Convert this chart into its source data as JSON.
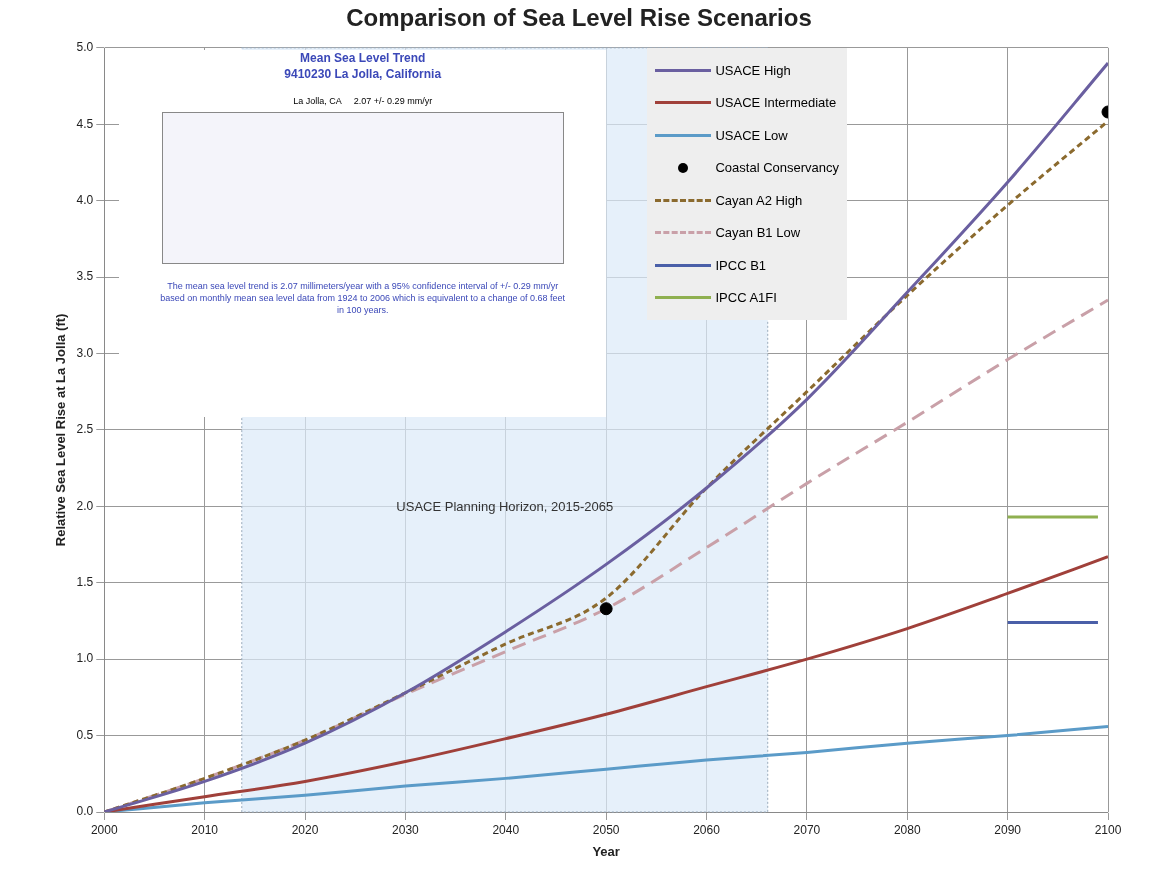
{
  "chart_data": {
    "type": "line",
    "title": "Comparison of Sea Level Rise Scenarios",
    "xlabel": "Year",
    "ylabel": "Relative Sea Level Rise at La Jolla (ft)",
    "x": [
      2000,
      2010,
      2020,
      2030,
      2040,
      2050,
      2060,
      2070,
      2080,
      2090,
      2100
    ],
    "series": [
      {
        "name": "USACE High",
        "color": "#6a5fa0",
        "line_style": "solid",
        "values": [
          0,
          0.2,
          0.45,
          0.78,
          1.18,
          1.62,
          2.12,
          2.7,
          3.4,
          4.12,
          4.9
        ]
      },
      {
        "name": "USACE Intermediate",
        "color": "#a0403a",
        "line_style": "solid",
        "values": [
          0,
          0.1,
          0.2,
          0.33,
          0.48,
          0.64,
          0.82,
          1.0,
          1.2,
          1.43,
          1.67
        ]
      },
      {
        "name": "USACE Low",
        "color": "#5b9bc8",
        "line_style": "solid",
        "values": [
          0,
          0.06,
          0.11,
          0.17,
          0.22,
          0.28,
          0.34,
          0.39,
          0.45,
          0.5,
          0.56
        ]
      },
      {
        "name": "Coastal Conservancy",
        "type": "scatter",
        "marker": "circle",
        "color": "#000000",
        "x": [
          2050,
          2100
        ],
        "values": [
          1.33,
          4.58
        ]
      },
      {
        "name": "Cayan A2 High",
        "color": "#8b6a2e",
        "line_style": "dotted",
        "values": [
          0,
          0.22,
          0.47,
          0.78,
          1.1,
          1.4,
          2.12,
          2.75,
          3.38,
          3.97,
          4.52
        ]
      },
      {
        "name": "Cayan B1 Low",
        "color": "#c9a0a8",
        "line_style": "dashed",
        "values": [
          0,
          0.22,
          0.47,
          0.77,
          1.05,
          1.33,
          1.73,
          2.15,
          2.55,
          2.96,
          3.35
        ]
      },
      {
        "name": "IPCC B1",
        "color": "#4a5fa8",
        "line_style": "solid",
        "x": [
          2090,
          2099
        ],
        "values": [
          1.24,
          1.24
        ]
      },
      {
        "name": "IPCC A1FI",
        "color": "#8fb050",
        "line_style": "solid",
        "x": [
          2090,
          2099
        ],
        "values": [
          1.93,
          1.93
        ]
      }
    ],
    "marker": "none",
    "bands": [
      {
        "axis": "x",
        "from": 2013.7,
        "to": 2066.1,
        "label": "USACE Planning Horizon, 2015-2065",
        "color": "#dbe9f8"
      }
    ],
    "xlim": [
      2000,
      2100
    ],
    "xticks": [
      2000,
      2010,
      2020,
      2030,
      2040,
      2050,
      2060,
      2070,
      2080,
      2090,
      2100
    ],
    "ylim": [
      0,
      5
    ],
    "yticks": [
      {
        "value": 0,
        "label": "0.0"
      },
      {
        "value": 0.5,
        "label": "0.5"
      },
      {
        "value": 1,
        "label": "1.0"
      },
      {
        "value": 1.5,
        "label": "1.5"
      },
      {
        "value": 2,
        "label": "2.0"
      },
      {
        "value": 2.5,
        "label": "2.5"
      },
      {
        "value": 3,
        "label": "3.0"
      },
      {
        "value": 3.5,
        "label": "3.5"
      },
      {
        "value": 4,
        "label": "4.0"
      },
      {
        "value": 4.5,
        "label": "4.5"
      },
      {
        "value": 5,
        "label": "5.0"
      }
    ],
    "grid": true,
    "legend": "top right",
    "annotations": [
      "Mean Sea Level Trend",
      "9410230 La Jolla, California",
      "La Jolla, CA     2.07 +/- 0.29 mm/yr",
      "The mean sea level trend is 2.07 millimeters/year with a 95% confidence interval of +/- 0.29 mm/yr based on monthly mean sea level data from 1924 to 2006 which is equivalent to a change of 0.68 feet in 100 years."
    ]
  }
}
